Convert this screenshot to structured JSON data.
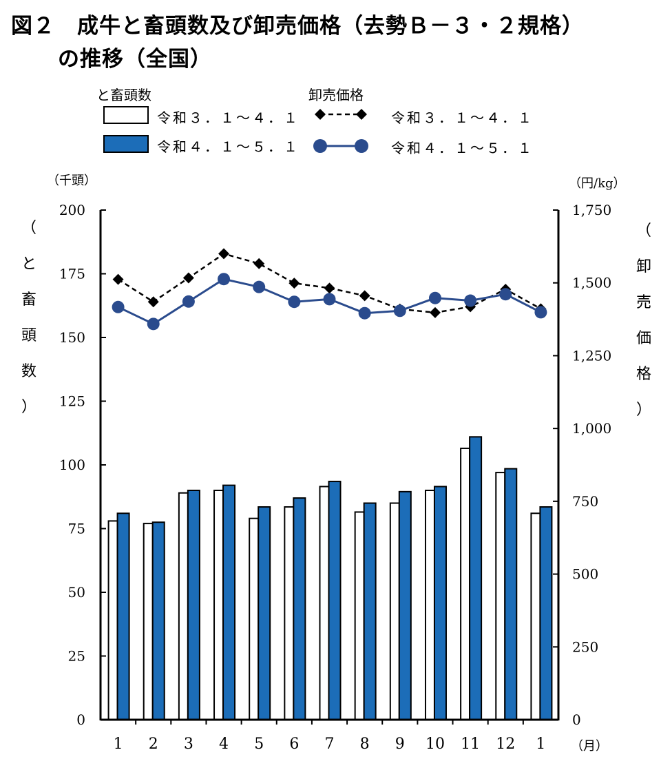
{
  "title": {
    "line1": "図２　成牛と畜頭数及び卸売価格（去勢Ｂ－３・２規格）",
    "line2": "の推移（全国）"
  },
  "legend": {
    "bars_heading": "と畜頭数",
    "lines_heading": "卸売価格",
    "bar_prev": "令和３．１～４．１",
    "bar_curr": "令和４．１～５．１",
    "line_prev": "令和３．１～４．１",
    "line_curr": "令和４．１～５．１"
  },
  "axes": {
    "left_unit": "（千頭）",
    "right_unit": "（円/kg）",
    "x_unit": "（月）",
    "left_label_chars": [
      "（",
      "と",
      "畜",
      "頭",
      "数",
      "）"
    ],
    "right_label_chars": [
      "（",
      "卸",
      "売",
      "価",
      "格",
      "）"
    ]
  },
  "colors": {
    "bar_prev_fill": "#ffffff",
    "bar_curr_fill": "#1C6DB8",
    "line_prev": "#000000",
    "line_curr": "#2A4B8D"
  },
  "chart_data": {
    "type": "bar+line",
    "categories": [
      "1",
      "2",
      "3",
      "4",
      "5",
      "6",
      "7",
      "8",
      "9",
      "10",
      "11",
      "12",
      "1"
    ],
    "bars": {
      "axis": "left",
      "ylabel": "と畜頭数",
      "unit": "千頭",
      "ylim": [
        0,
        200
      ],
      "ticks": [
        0,
        25,
        50,
        75,
        100,
        125,
        150,
        175,
        200
      ],
      "tick_labels": [
        "0",
        "25",
        "50",
        "75",
        "100",
        "125",
        "150",
        "175",
        "200"
      ],
      "series": [
        {
          "name": "令和３．１～４．１",
          "values": [
            78,
            77,
            89,
            90,
            79,
            83.5,
            91.5,
            81.5,
            85,
            90,
            106.5,
            97,
            81
          ]
        },
        {
          "name": "令和４．１～５．１",
          "values": [
            81,
            77.5,
            90,
            92,
            83.5,
            87,
            93.5,
            85,
            89.5,
            91.5,
            111,
            98.5,
            83.5
          ]
        }
      ]
    },
    "lines": {
      "axis": "right",
      "ylabel": "卸売価格",
      "unit": "円/kg",
      "ylim": [
        0,
        1750
      ],
      "ticks": [
        0,
        250,
        500,
        750,
        1000,
        1250,
        1500,
        1750
      ],
      "tick_labels": [
        "0",
        "250",
        "500",
        "750",
        "1,000",
        "1,250",
        "1,500",
        "1,750"
      ],
      "series": [
        {
          "name": "令和３．１～４．１",
          "style": "dashed",
          "marker": "diamond",
          "values": [
            1512,
            1435,
            1517,
            1600,
            1566,
            1499,
            1482,
            1456,
            1410,
            1398,
            1418,
            1478,
            1411
          ]
        },
        {
          "name": "令和４．１～５．１",
          "style": "solid",
          "marker": "circle",
          "values": [
            1417,
            1359,
            1436,
            1513,
            1486,
            1435,
            1444,
            1396,
            1404,
            1448,
            1439,
            1461,
            1399
          ]
        }
      ]
    }
  }
}
